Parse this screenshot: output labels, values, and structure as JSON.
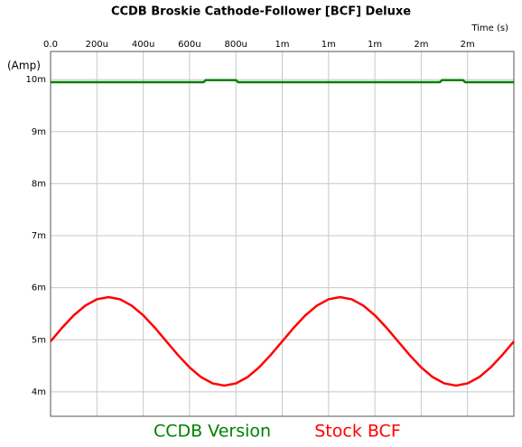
{
  "chart_data": {
    "type": "line",
    "title": "CCDB Broskie Cathode-Follower [BCF] Deluxe",
    "x_label": "Time  (s)",
    "y_label": "(Amp)",
    "xlim": [
      0,
      0.002
    ],
    "ylim": [
      0.00353,
      0.01054
    ],
    "xticks": [
      {
        "value": 0,
        "label": "0.0"
      },
      {
        "value": 0.0002,
        "label": "200u"
      },
      {
        "value": 0.0004,
        "label": "400u"
      },
      {
        "value": 0.0006,
        "label": "600u"
      },
      {
        "value": 0.0008,
        "label": "800u"
      },
      {
        "value": 0.001,
        "label": "1m"
      },
      {
        "value": 0.0012,
        "label": "1m"
      },
      {
        "value": 0.0014,
        "label": "1m"
      },
      {
        "value": 0.0016,
        "label": "2m"
      },
      {
        "value": 0.0018,
        "label": "2m"
      }
    ],
    "yticks": [
      {
        "value": 0.004,
        "label": "4m"
      },
      {
        "value": 0.005,
        "label": "5m"
      },
      {
        "value": 0.006,
        "label": "6m"
      },
      {
        "value": 0.007,
        "label": "7m"
      },
      {
        "value": 0.008,
        "label": "8m"
      },
      {
        "value": 0.009,
        "label": "9m"
      },
      {
        "value": 0.01,
        "label": "10m"
      }
    ],
    "grid": true,
    "series": [
      {
        "name": "CCDB Version",
        "color": "#008000",
        "x": [
          0,
          0.00066,
          0.00067,
          0.0008,
          0.00081,
          0.00168,
          0.00169,
          0.00178,
          0.00179,
          0.002
        ],
        "values": [
          0.00995,
          0.00995,
          0.00999,
          0.00999,
          0.00995,
          0.00995,
          0.00999,
          0.00999,
          0.00995,
          0.00995
        ]
      },
      {
        "name": "Stock BCF",
        "color": "#ff0000",
        "x": [
          0,
          5e-05,
          0.0001,
          0.00015,
          0.0002,
          0.00025,
          0.0003,
          0.00035,
          0.0004,
          0.00045,
          0.0005,
          0.00055,
          0.0006,
          0.00065,
          0.0007,
          0.00075,
          0.0008,
          0.00085,
          0.0009,
          0.00095,
          0.001,
          0.00105,
          0.0011,
          0.00115,
          0.0012,
          0.00125,
          0.0013,
          0.00135,
          0.0014,
          0.00145,
          0.0015,
          0.00155,
          0.0016,
          0.00165,
          0.0017,
          0.00175,
          0.0018,
          0.00185,
          0.0019,
          0.00195,
          0.002
        ],
        "values": [
          0.00497,
          0.005233,
          0.00547,
          0.005658,
          0.005778,
          0.00582,
          0.005778,
          0.005658,
          0.00547,
          0.005233,
          0.00497,
          0.004707,
          0.00447,
          0.004282,
          0.004162,
          0.00412,
          0.004162,
          0.004282,
          0.00447,
          0.004707,
          0.00497,
          0.005233,
          0.00547,
          0.005658,
          0.005778,
          0.00582,
          0.005778,
          0.005658,
          0.00547,
          0.005233,
          0.00497,
          0.004707,
          0.00447,
          0.004282,
          0.004162,
          0.00412,
          0.004162,
          0.004282,
          0.00447,
          0.004707,
          0.00497
        ]
      }
    ]
  }
}
